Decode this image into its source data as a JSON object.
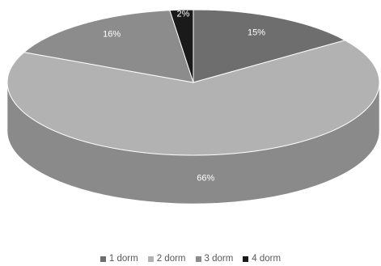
{
  "chart_data": {
    "type": "pie",
    "style": "3d",
    "categories": [
      "1 dorm",
      "2 dorm",
      "3 dorm",
      "4 dorm"
    ],
    "values": [
      15,
      66,
      16,
      2
    ],
    "labels": [
      "15%",
      "66%",
      "16%",
      "2%"
    ],
    "colors": [
      "#6e6e6e",
      "#b2b2b2",
      "#8c8c8c",
      "#1a1a1a"
    ],
    "side_colors": [
      "#4f4f4f",
      "#8a8a8a",
      "#686868",
      "#0d0d0d"
    ],
    "legend_position": "bottom"
  }
}
